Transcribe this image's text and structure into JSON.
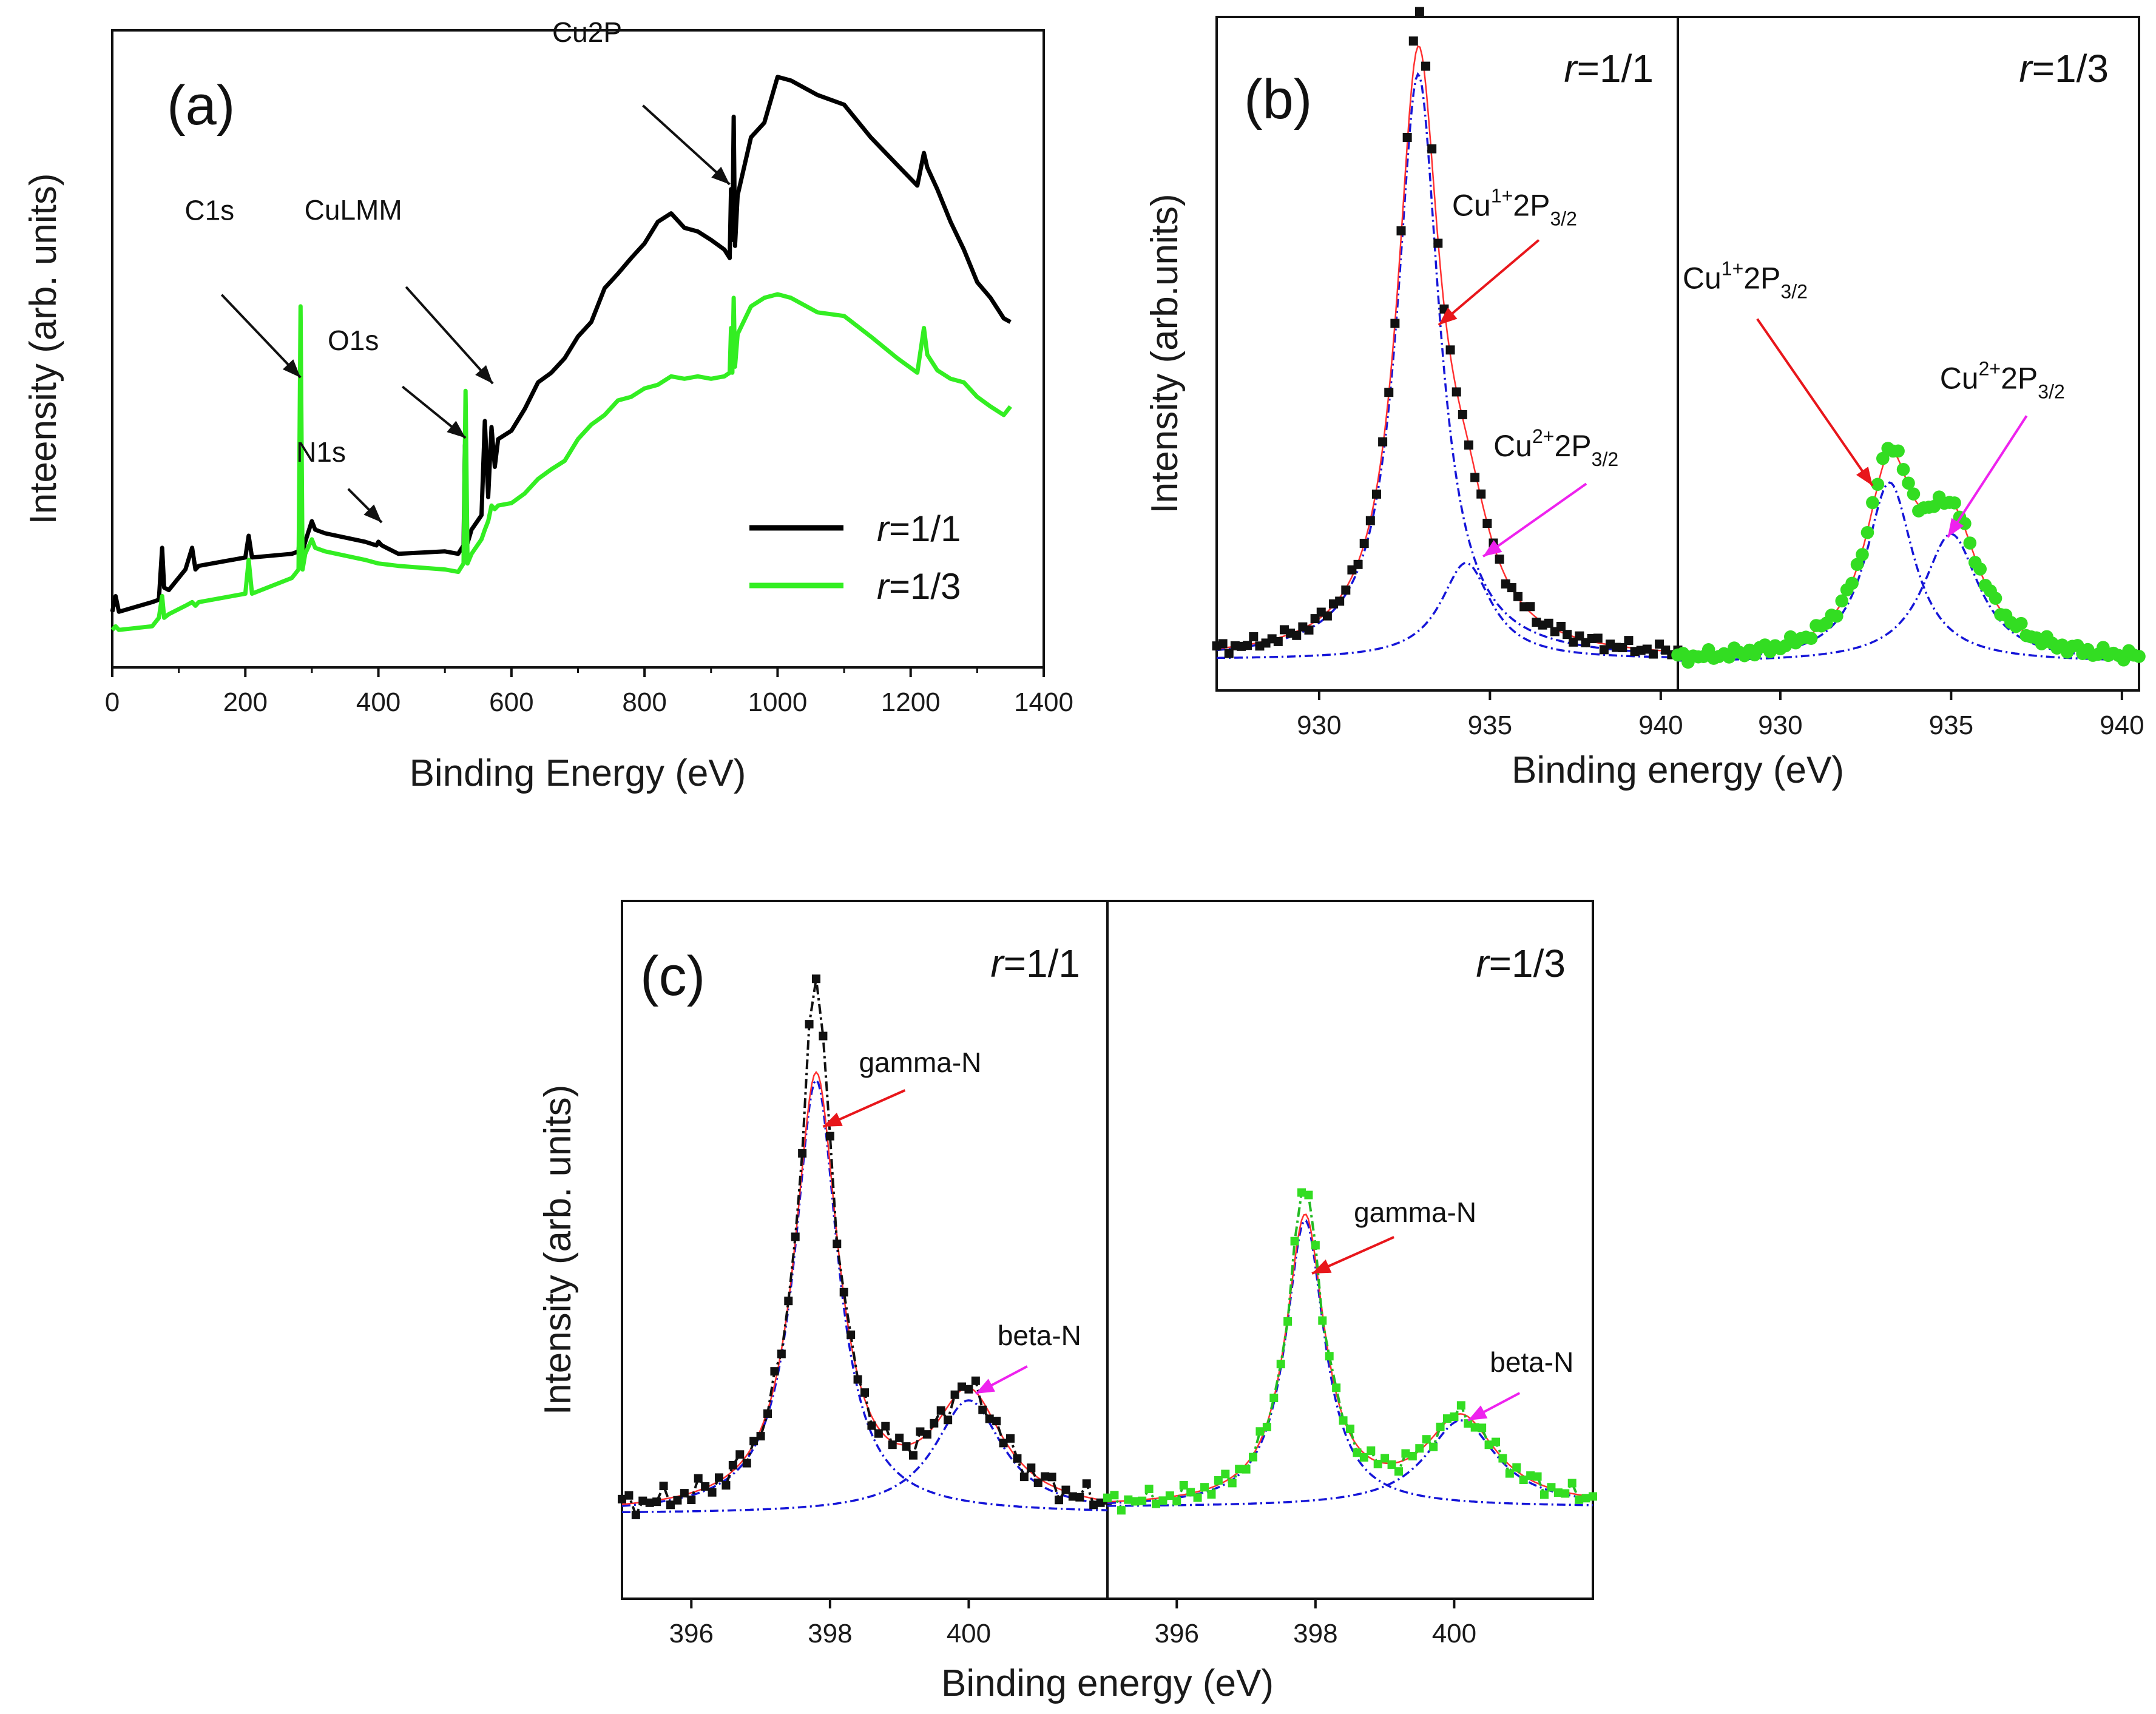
{
  "chart_data": [
    {
      "id": "a",
      "type": "line",
      "panel_label": "(a)",
      "xlabel": "Binding Energy (eV)",
      "ylabel": "Inteensity (arb. units)",
      "xlim": [
        0,
        1400
      ],
      "ylim": [
        0,
        100
      ],
      "xticks": [
        "0",
        "200",
        "400",
        "600",
        "800",
        "1000",
        "1200",
        "1400"
      ],
      "legend_position": "bottom-right",
      "legend": [
        {
          "prefix": "r",
          "rest": "=1/1",
          "color": "#000000"
        },
        {
          "prefix": "r",
          "rest": "=1/3",
          "color": "#33ee22"
        }
      ],
      "series": [
        {
          "name": "r=1/1",
          "color": "#000000",
          "x": [
            0,
            5,
            10,
            60,
            70,
            75,
            78,
            85,
            110,
            120,
            125,
            130,
            200,
            205,
            210,
            270,
            280,
            283,
            286,
            290,
            300,
            305,
            320,
            380,
            397,
            400,
            405,
            430,
            500,
            520,
            528,
            530,
            533,
            540,
            555,
            560,
            565,
            570,
            575,
            580,
            600,
            620,
            640,
            660,
            680,
            700,
            720,
            740,
            760,
            780,
            800,
            820,
            840,
            860,
            880,
            900,
            920,
            928,
            930,
            932,
            934,
            936,
            940,
            960,
            980,
            1000,
            1020,
            1060,
            1100,
            1140,
            1180,
            1210,
            1220,
            1225,
            1240,
            1260,
            1280,
            1300,
            1320,
            1340,
            1350
          ],
          "y": [
            6,
            9,
            6,
            8,
            8,
            17,
            10,
            10,
            13,
            17,
            13,
            14,
            15,
            19,
            15,
            16,
            16,
            22,
            16,
            18,
            21,
            20,
            19,
            18,
            17,
            18,
            17,
            16,
            16,
            16,
            17,
            34,
            17,
            20,
            22,
            38,
            25,
            37,
            30,
            35,
            36,
            40,
            44,
            46,
            48,
            52,
            54,
            60,
            62,
            65,
            67,
            71,
            72,
            70,
            69,
            68,
            66,
            65,
            76,
            68,
            88,
            67,
            75,
            85,
            87,
            95,
            94,
            92,
            90,
            85,
            80,
            77,
            82,
            80,
            76,
            71,
            66,
            61,
            58,
            55,
            54
          ]
        },
        {
          "name": "r=1/3",
          "color": "#33ee22",
          "x": [
            0,
            5,
            10,
            60,
            70,
            75,
            78,
            85,
            110,
            120,
            125,
            130,
            200,
            205,
            210,
            270,
            280,
            283,
            286,
            290,
            300,
            305,
            320,
            380,
            400,
            430,
            500,
            520,
            528,
            531,
            534,
            540,
            555,
            560,
            565,
            570,
            575,
            580,
            600,
            620,
            640,
            660,
            680,
            700,
            720,
            740,
            760,
            780,
            800,
            820,
            840,
            860,
            880,
            900,
            920,
            928,
            930,
            932,
            934,
            936,
            940,
            960,
            980,
            1000,
            1020,
            1060,
            1100,
            1140,
            1180,
            1210,
            1220,
            1225,
            1240,
            1260,
            1280,
            1300,
            1320,
            1340,
            1350
          ],
          "y": [
            3,
            4,
            3,
            4,
            5,
            9,
            5,
            6,
            7,
            8,
            7,
            8,
            9,
            15,
            9,
            12,
            13,
            57,
            13,
            16,
            18,
            17,
            16,
            15,
            14,
            14,
            13,
            13,
            14,
            43,
            14,
            16,
            18,
            20,
            21,
            24,
            23,
            24,
            24,
            26,
            28,
            30,
            31,
            35,
            37,
            39,
            41,
            42,
            43,
            44,
            45,
            45,
            45,
            45,
            45,
            46,
            53,
            46,
            58,
            47,
            52,
            57,
            58,
            59,
            58,
            56,
            55,
            52,
            48,
            46,
            53,
            49,
            46,
            45,
            44,
            42,
            40,
            39,
            40
          ]
        }
      ],
      "annotations": [
        {
          "text": "Cu2P",
          "target": [
            928,
            77
          ]
        },
        {
          "text": "C1s",
          "target": [
            283,
            45
          ]
        },
        {
          "text": "CuLMM",
          "target": [
            572,
            44
          ]
        },
        {
          "text": "O1s",
          "target": [
            531,
            35
          ]
        },
        {
          "text": "N1s",
          "target": [
            405,
            21
          ]
        }
      ]
    },
    {
      "id": "b",
      "type": "scatter",
      "panel_label": "(b)",
      "xlabel": "Binding energy (eV)",
      "ylabel": "Intensity (arb.units)",
      "subpanels": [
        {
          "label_prefix": "r",
          "label_rest": "=1/1",
          "xlim": [
            927,
            940.5
          ],
          "ylim": [
            0,
            100
          ],
          "xticks": [
            "930",
            "935",
            "940"
          ],
          "marker_color": "#111111",
          "marker_shape": "square",
          "baseline": 2,
          "peaks": [
            {
              "center": 932.9,
              "height": 91,
              "width": 0.75
            },
            {
              "center": 934.3,
              "height": 15,
              "width": 0.9
            }
          ],
          "annotations": [
            {
              "base": "Cu",
              "sup": "1+",
              "mid": "2P",
              "sub": "3/2",
              "arrow_color": "#e8161b",
              "target": [
                933.5,
                54
              ]
            },
            {
              "base": "Cu",
              "sup": "2+",
              "mid": "2P",
              "sub": "3/2",
              "arrow_color": "#ee22ee",
              "target": [
                934.8,
                18
              ]
            }
          ]
        },
        {
          "label_prefix": "r",
          "label_rest": "=1/3",
          "xlim": [
            927,
            940.5
          ],
          "ylim": [
            0,
            100
          ],
          "xticks": [
            "930",
            "935",
            "940"
          ],
          "marker_color": "#33dd22",
          "marker_shape": "circle",
          "baseline": 1.5,
          "peaks": [
            {
              "center": 933.2,
              "height": 28,
              "width": 0.85
            },
            {
              "center": 935.0,
              "height": 20,
              "width": 1.0
            }
          ],
          "annotations": [
            {
              "base": "Cu",
              "sup": "1+",
              "mid": "2P",
              "sub": "3/2",
              "arrow_color": "#e8161b",
              "target": [
                932.7,
                29
              ]
            },
            {
              "base": "Cu",
              "sup": "2+",
              "mid": "2P",
              "sub": "3/2",
              "arrow_color": "#ee22ee",
              "target": [
                934.9,
                21
              ]
            }
          ]
        }
      ]
    },
    {
      "id": "c",
      "type": "scatter",
      "panel_label": "(c)",
      "xlabel": "Binding energy (eV)",
      "ylabel": "Intensity (arb. units)",
      "subpanels": [
        {
          "label_prefix": "r",
          "label_rest": "=1/1",
          "xlim": [
            395,
            402
          ],
          "ylim": [
            0,
            100
          ],
          "xticks": [
            "396",
            "398",
            "400"
          ],
          "marker_color": "#111111",
          "marker_shape": "square",
          "baseline": 10,
          "peaks": [
            {
              "center": 397.8,
              "height": 65,
              "width": 0.38
            },
            {
              "center": 400.0,
              "height": 17,
              "width": 0.6
            }
          ],
          "annotations": [
            {
              "text": "gamma-N",
              "arrow_color": "#e8161b",
              "target": [
                397.9,
                68
              ]
            },
            {
              "text": "beta-N",
              "arrow_color": "#ee22ee",
              "target": [
                400.1,
                28
              ]
            }
          ]
        },
        {
          "label_prefix": "r",
          "label_rest": "=1/3",
          "xlim": [
            395,
            402
          ],
          "ylim": [
            0,
            100
          ],
          "xticks": [
            "396",
            "398",
            "400"
          ],
          "marker_color": "#33dd22",
          "marker_shape": "square",
          "baseline": 11,
          "peaks": [
            {
              "center": 397.85,
              "height": 43,
              "width": 0.34
            },
            {
              "center": 400.1,
              "height": 13,
              "width": 0.62
            }
          ],
          "annotations": [
            {
              "text": "gamma-N",
              "arrow_color": "#e8161b",
              "target": [
                397.95,
                46
              ]
            },
            {
              "text": "beta-N",
              "arrow_color": "#ee22ee",
              "target": [
                400.2,
                24
              ]
            }
          ]
        }
      ]
    }
  ]
}
